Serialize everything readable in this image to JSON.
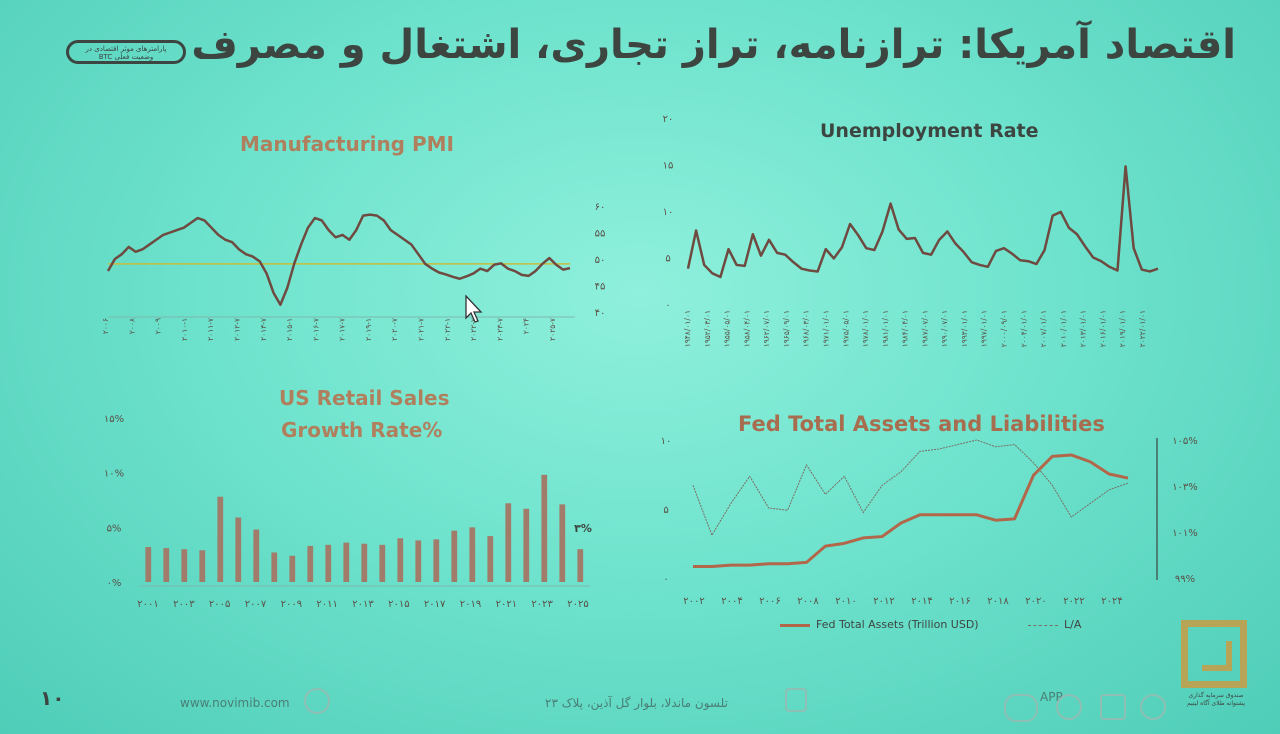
{
  "slide": {
    "title": "اقتصاد آمریکا: ترازنامه، تراز تجاری، اشتغال و مصرف",
    "badge_lines": [
      "پارامترهای موثر اقتصادی در",
      "وضعیت فعلی BTC"
    ],
    "page_number": "۱۰",
    "website": "www.novimib.com",
    "address": "تلسون ماندلا، بلوار گل آذین، پلاک ۲۳",
    "footer_misc": "APP",
    "logo_caption": [
      "صندوق سرمایه گذاری",
      "پشتوانه طلای آگاه لیتیم"
    ]
  },
  "chart_data": [
    {
      "type": "line",
      "title": "Manufacturing PMI",
      "y_ticks": [
        "۶۰",
        "۵۵",
        "۵۰",
        "۴۵",
        "۴۰"
      ],
      "ylim": [
        40,
        62
      ],
      "reference_line": 50,
      "x_labels": [
        "۲۰۰۶",
        "۲۰۰۸",
        "۲۰۰۹",
        "۲۰۱۰-۱",
        "۲۰۱۱-۷",
        "۲۰۱۲-۷",
        "۲۰۱۳-۷",
        "۲۰۱۵-۱",
        "۲۰۱۶-۷",
        "۲۰۱۷-۷",
        "۲۰۱۹-۱",
        "۲۰۲۰-۷",
        "۲۰۲۱-۷",
        "۲۰۲۲-۱",
        "۲۰۲۲-۷",
        "۲۰۲۳-۷",
        "۲۰۲۴",
        "۲۰۲۵-۷"
      ],
      "values": [
        48.5,
        51,
        52,
        53.5,
        52.5,
        53,
        54,
        55,
        56,
        56.5,
        57,
        57.5,
        58.5,
        59.5,
        59,
        57.5,
        56,
        55,
        54.5,
        53,
        52,
        51.5,
        50.5,
        48,
        44,
        41.5,
        45,
        50,
        54,
        57.5,
        59.5,
        59,
        57,
        55.5,
        56,
        55,
        57,
        60,
        60.2,
        60,
        59,
        57,
        56,
        55,
        54,
        52,
        50,
        49,
        48.2,
        47.8,
        47.3,
        46.9,
        47.4,
        48,
        49,
        48.5,
        49.8,
        50.1,
        49,
        48.5,
        47.7,
        47.5,
        48.5,
        50,
        51.2,
        49.8,
        48.8,
        49.1
      ]
    },
    {
      "type": "line",
      "title": "Unemployment Rate",
      "y_ticks": [
        "۲۰",
        "۱۵",
        "۱۰",
        "۵",
        "۰"
      ],
      "ylim": [
        0,
        20
      ],
      "x_labels": [
        "۱۹۴۸/۰۱/۰۱",
        "۱۹۵۲/۰۳/۰۱",
        "۱۹۵۵/۰۵/۰۱",
        "۱۹۵۸/۰۴/۰۱",
        "۱۹۶۲/۰۷/۰۱",
        "۱۹۶۵/۰۹/۰۱",
        "۱۹۶۸/۰۳/۰۱",
        "۱۹۷۱/۰۱/۰۱",
        "۱۹۷۵/۰۵/۰۱",
        "۱۹۷۸/۰۱/۰۱",
        "۱۹۸۱/۰۱/۰۱",
        "۱۹۸۴/۰۴/۰۱",
        "۱۹۸۷/۰۷/۰۱",
        "۱۹۹۰/۰۷/۰۱",
        "۱۹۹۳/۰۱/۰۱",
        "۱۹۹۷/۰۱/۰۱",
        "۲۰۰۰/۰۹/۰۱",
        "۲۰۰۴/۰۱/۰۱",
        "۲۰۰۷/۰۱/۰۱",
        "۲۰۱۰/۰۱/۰۱",
        "۲۰۱۳/۰۱/۰۱",
        "۲۰۱۶/۰۱/۰۱",
        "۲۰۱۹/۰۱/۰۱",
        "۲۰۲۲/۰۱/۰۱"
      ],
      "values": [
        3.8,
        7.9,
        4.2,
        3.3,
        2.9,
        5.9,
        4.2,
        4.1,
        7.5,
        5.2,
        6.9,
        5.5,
        5.3,
        4.5,
        3.8,
        3.6,
        3.5,
        5.9,
        4.9,
        6.1,
        8.6,
        7.4,
        6.0,
        5.8,
        7.8,
        10.8,
        8.0,
        7.0,
        7.1,
        5.5,
        5.3,
        6.9,
        7.8,
        6.5,
        5.6,
        4.5,
        4.2,
        4.0,
        5.7,
        6.0,
        5.4,
        4.7,
        4.6,
        4.3,
        5.8,
        9.5,
        9.9,
        8.2,
        7.5,
        6.2,
        5.0,
        4.6,
        4.0,
        3.6,
        14.8,
        6.0,
        3.7,
        3.5,
        3.8
      ]
    },
    {
      "type": "bar",
      "title": [
        "US Retail Sales",
        "Growth Rate%"
      ],
      "y_ticks": [
        "۱۵%",
        "۱۰%",
        "۵%",
        "۰%"
      ],
      "ylim": [
        0,
        15
      ],
      "x_labels": [
        "۲۰۰۱",
        "۲۰۰۳",
        "۲۰۰۵",
        "۲۰۰۷",
        "۲۰۰۹",
        "۲۰۱۱",
        "۲۰۱۳",
        "۲۰۱۵",
        "۲۰۱۷",
        "۲۰۱۹",
        "۲۰۲۱",
        "۲۰۲۳",
        "۲۰۲۵"
      ],
      "values": [
        3.2,
        3.1,
        3.0,
        2.9,
        7.8,
        5.9,
        4.8,
        2.7,
        2.4,
        3.3,
        3.4,
        3.6,
        3.5,
        3.4,
        4.0,
        3.8,
        3.9,
        4.7,
        5.0,
        4.2,
        7.2,
        6.7,
        9.8,
        7.1,
        3.0
      ],
      "last_label": "۳%"
    },
    {
      "type": "line",
      "title": "Fed Total Assets and Liabilities",
      "y_ticks_left": [
        "۱۰",
        "۵",
        "۰"
      ],
      "ylim_left": [
        0,
        10
      ],
      "y_ticks_right": [
        "۱۰۵%",
        "۱۰۳%",
        "۱۰۱%",
        "۹۹%"
      ],
      "ylim_right": [
        99,
        105
      ],
      "x_labels": [
        "۲۰۰۲",
        "۲۰۰۴",
        "۲۰۰۶",
        "۲۰۰۸",
        "۲۰۱۰",
        "۲۰۱۲",
        "۲۰۱۴",
        "۲۰۱۶",
        "۲۰۱۸",
        "۲۰۲۰",
        "۲۰۲۲",
        "۲۰۲۴"
      ],
      "series": [
        {
          "name": "Fed Total Assets (Trillion USD)",
          "x": [
            2002,
            2003,
            2004,
            2005,
            2006,
            2007,
            2008,
            2009,
            2010,
            2011,
            2012,
            2013,
            2014,
            2015,
            2016,
            2017,
            2018,
            2019,
            2020,
            2021,
            2022,
            2023,
            2024,
            2025
          ],
          "values": [
            0.7,
            0.7,
            0.8,
            0.8,
            0.9,
            0.9,
            1.0,
            2.2,
            2.4,
            2.8,
            2.9,
            3.9,
            4.5,
            4.5,
            4.5,
            4.5,
            4.1,
            4.2,
            7.4,
            8.8,
            8.9,
            8.4,
            7.5,
            7.2
          ]
        },
        {
          "name": "L/A",
          "x": [
            2002,
            2003,
            2004,
            2005,
            2006,
            2007,
            2008,
            2009,
            2010,
            2011,
            2012,
            2013,
            2014,
            2015,
            2016,
            2017,
            2018,
            2019,
            2020,
            2021,
            2022,
            2023,
            2024,
            2025
          ],
          "values": [
            103.0,
            100.8,
            102.2,
            103.4,
            102.0,
            101.9,
            103.9,
            102.6,
            103.4,
            101.8,
            103.0,
            103.6,
            104.5,
            104.6,
            104.8,
            105.0,
            104.7,
            104.8,
            104.0,
            103.0,
            101.6,
            102.2,
            102.8,
            103.1
          ]
        }
      ]
    }
  ],
  "colors": {
    "line": "#6e4a40",
    "bar": "#a27c6a",
    "fed_assets": "#b2674a",
    "fed_la": "#7a6d64",
    "reference": "#c8bd3a",
    "axis": "#7fb8ad"
  }
}
